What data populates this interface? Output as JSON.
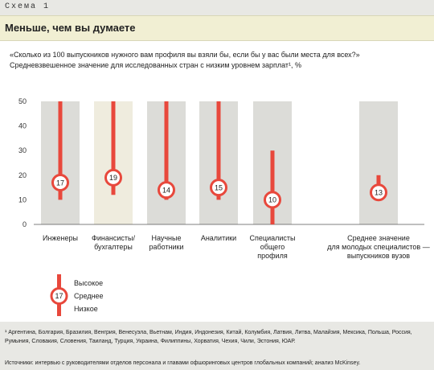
{
  "header": {
    "scheme_label": "Схема 1",
    "title": "Меньше, чем вы думаете"
  },
  "question": {
    "line1": "«Сколько из 100 выпускников нужного вам профиля вы взяли бы, если бы у вас были места для всех?»",
    "line2": "Средневзвешенное значение для исследованных стран с низким уровнем зарплат¹, %"
  },
  "legend": {
    "high": "Высокое",
    "mid": "Среднее",
    "low": "Низкое",
    "sample_value": "17"
  },
  "footnote": {
    "text": "¹ Аргентина, Болгария, Бразилия, Венгрия, Венесуэла, Вьетнам, Индия, Индонезия, Китай, Колумбия, Латвия, Литва, Малайзия, Мексика, Польша, Россия, Румыния, Словакия, Словения, Таиланд, Турция, Украина, Филиппины, Хорватия, Чехия, Чили, Эстония, ЮАР.",
    "source": "Источники: интервью с руководителями отделов персонала и главами офшоринговых центров глобальных компаний; анализ McKinsey."
  },
  "colors": {
    "bar": "#e8483c",
    "marker": "#e8483c",
    "col_gray": "#dcdcd8",
    "col_beige": "#efecde",
    "axis": "#555555"
  },
  "chart_data": {
    "type": "range",
    "ylim": [
      0,
      50
    ],
    "yticks": [
      0,
      10,
      20,
      30,
      40,
      50
    ],
    "grid": false,
    "categories": [
      {
        "label": [
          "Инженеры"
        ],
        "low": 10,
        "high": 50,
        "mid": 17
      },
      {
        "label": [
          "Финансисты/",
          "бухгалтеры"
        ],
        "low": 12,
        "high": 50,
        "mid": 19
      },
      {
        "label": [
          "Научные",
          "работники"
        ],
        "low": 10,
        "high": 50,
        "mid": 14
      },
      {
        "label": [
          "Аналитики"
        ],
        "low": 10,
        "high": 50,
        "mid": 15
      },
      {
        "label": [
          "Специалисты",
          "общего",
          "профиля"
        ],
        "low": 0,
        "high": 30,
        "mid": 10
      },
      {
        "label": [
          "Среднее значение",
          "для молодых специалистов —",
          "выпускников вузов"
        ],
        "low": 10,
        "high": 20,
        "mid": 13
      }
    ]
  }
}
